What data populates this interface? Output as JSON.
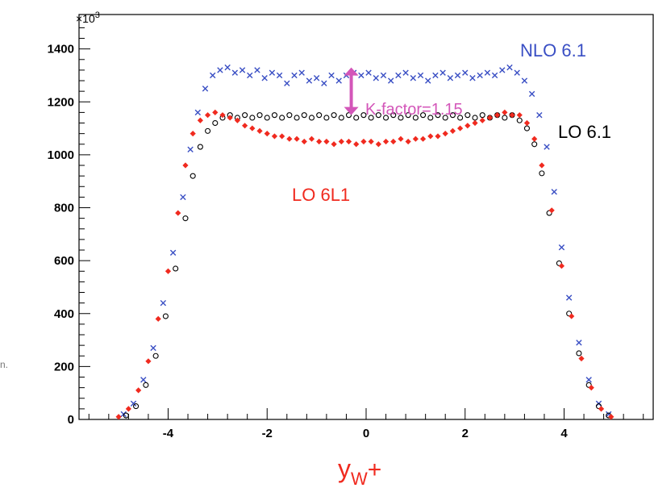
{
  "side_fragment": "n.",
  "chart_data": {
    "type": "scatter",
    "title": "",
    "xlabel": "y",
    "xlabel_sub": "W",
    "xlabel_sup": "+",
    "ylabel": "",
    "y_multiplier": "×10",
    "y_multiplier_exp": "3",
    "xlim": [
      -5.8,
      5.8
    ],
    "ylim": [
      0,
      1530
    ],
    "x_ticks": [
      "-4",
      "-2",
      "0",
      "2",
      "4"
    ],
    "y_ticks": [
      "0",
      "200",
      "400",
      "600",
      "800",
      "1000",
      "1200",
      "1400"
    ],
    "grid": false,
    "annotation": {
      "text": "K-factor=1.15",
      "x": -0.3,
      "y_from": 1150,
      "y_to": 1330,
      "color": "#d356b9"
    },
    "series": [
      {
        "name": "NLO 6.1",
        "marker": "cross",
        "color": "#3a4fc4",
        "points": [
          [
            -4.9,
            20
          ],
          [
            -4.7,
            60
          ],
          [
            -4.5,
            150
          ],
          [
            -4.3,
            270
          ],
          [
            -4.1,
            440
          ],
          [
            -3.9,
            630
          ],
          [
            -3.7,
            840
          ],
          [
            -3.55,
            1020
          ],
          [
            -3.4,
            1160
          ],
          [
            -3.25,
            1250
          ],
          [
            -3.1,
            1300
          ],
          [
            -2.95,
            1320
          ],
          [
            -2.8,
            1330
          ],
          [
            -2.65,
            1310
          ],
          [
            -2.5,
            1320
          ],
          [
            -2.35,
            1300
          ],
          [
            -2.2,
            1320
          ],
          [
            -2.05,
            1290
          ],
          [
            -1.9,
            1310
          ],
          [
            -1.75,
            1300
          ],
          [
            -1.6,
            1270
          ],
          [
            -1.45,
            1300
          ],
          [
            -1.3,
            1310
          ],
          [
            -1.15,
            1280
          ],
          [
            -1.0,
            1290
          ],
          [
            -0.85,
            1270
          ],
          [
            -0.7,
            1300
          ],
          [
            -0.55,
            1280
          ],
          [
            -0.4,
            1300
          ],
          [
            -0.25,
            1310
          ],
          [
            -0.1,
            1300
          ],
          [
            0.05,
            1310
          ],
          [
            0.2,
            1290
          ],
          [
            0.35,
            1300
          ],
          [
            0.5,
            1280
          ],
          [
            0.65,
            1300
          ],
          [
            0.8,
            1310
          ],
          [
            0.95,
            1290
          ],
          [
            1.1,
            1300
          ],
          [
            1.25,
            1280
          ],
          [
            1.4,
            1300
          ],
          [
            1.55,
            1310
          ],
          [
            1.7,
            1290
          ],
          [
            1.85,
            1300
          ],
          [
            2.0,
            1310
          ],
          [
            2.15,
            1290
          ],
          [
            2.3,
            1300
          ],
          [
            2.45,
            1310
          ],
          [
            2.6,
            1300
          ],
          [
            2.75,
            1320
          ],
          [
            2.9,
            1330
          ],
          [
            3.05,
            1310
          ],
          [
            3.2,
            1280
          ],
          [
            3.35,
            1230
          ],
          [
            3.5,
            1150
          ],
          [
            3.65,
            1030
          ],
          [
            3.8,
            860
          ],
          [
            3.95,
            650
          ],
          [
            4.1,
            460
          ],
          [
            4.3,
            290
          ],
          [
            4.5,
            150
          ],
          [
            4.7,
            60
          ],
          [
            4.9,
            20
          ]
        ]
      },
      {
        "name": "LO 6.1",
        "marker": "circle",
        "color": "#000000",
        "points": [
          [
            -4.85,
            15
          ],
          [
            -4.65,
            50
          ],
          [
            -4.45,
            130
          ],
          [
            -4.25,
            240
          ],
          [
            -4.05,
            390
          ],
          [
            -3.85,
            570
          ],
          [
            -3.65,
            760
          ],
          [
            -3.5,
            920
          ],
          [
            -3.35,
            1030
          ],
          [
            -3.2,
            1090
          ],
          [
            -3.05,
            1120
          ],
          [
            -2.9,
            1140
          ],
          [
            -2.75,
            1150
          ],
          [
            -2.6,
            1140
          ],
          [
            -2.45,
            1150
          ],
          [
            -2.3,
            1140
          ],
          [
            -2.15,
            1150
          ],
          [
            -2.0,
            1140
          ],
          [
            -1.85,
            1150
          ],
          [
            -1.7,
            1140
          ],
          [
            -1.55,
            1150
          ],
          [
            -1.4,
            1140
          ],
          [
            -1.25,
            1150
          ],
          [
            -1.1,
            1140
          ],
          [
            -0.95,
            1150
          ],
          [
            -0.8,
            1140
          ],
          [
            -0.65,
            1150
          ],
          [
            -0.5,
            1140
          ],
          [
            -0.35,
            1150
          ],
          [
            -0.2,
            1140
          ],
          [
            -0.05,
            1150
          ],
          [
            0.1,
            1140
          ],
          [
            0.25,
            1150
          ],
          [
            0.4,
            1140
          ],
          [
            0.55,
            1150
          ],
          [
            0.7,
            1140
          ],
          [
            0.85,
            1150
          ],
          [
            1.0,
            1140
          ],
          [
            1.15,
            1150
          ],
          [
            1.3,
            1140
          ],
          [
            1.45,
            1150
          ],
          [
            1.6,
            1140
          ],
          [
            1.75,
            1150
          ],
          [
            1.9,
            1140
          ],
          [
            2.05,
            1150
          ],
          [
            2.2,
            1140
          ],
          [
            2.35,
            1150
          ],
          [
            2.5,
            1140
          ],
          [
            2.65,
            1150
          ],
          [
            2.8,
            1140
          ],
          [
            2.95,
            1150
          ],
          [
            3.1,
            1130
          ],
          [
            3.25,
            1100
          ],
          [
            3.4,
            1040
          ],
          [
            3.55,
            930
          ],
          [
            3.7,
            780
          ],
          [
            3.9,
            590
          ],
          [
            4.1,
            400
          ],
          [
            4.3,
            250
          ],
          [
            4.5,
            130
          ],
          [
            4.7,
            50
          ],
          [
            4.9,
            15
          ]
        ]
      },
      {
        "name": "LO 6L1",
        "marker": "diamond",
        "color": "#f02a1f",
        "points": [
          [
            -5.0,
            10
          ],
          [
            -4.8,
            40
          ],
          [
            -4.6,
            110
          ],
          [
            -4.4,
            220
          ],
          [
            -4.2,
            380
          ],
          [
            -4.0,
            560
          ],
          [
            -3.8,
            780
          ],
          [
            -3.65,
            960
          ],
          [
            -3.5,
            1080
          ],
          [
            -3.35,
            1130
          ],
          [
            -3.2,
            1150
          ],
          [
            -3.05,
            1160
          ],
          [
            -2.9,
            1150
          ],
          [
            -2.75,
            1140
          ],
          [
            -2.6,
            1130
          ],
          [
            -2.45,
            1110
          ],
          [
            -2.3,
            1100
          ],
          [
            -2.15,
            1090
          ],
          [
            -2.0,
            1080
          ],
          [
            -1.85,
            1070
          ],
          [
            -1.7,
            1070
          ],
          [
            -1.55,
            1060
          ],
          [
            -1.4,
            1060
          ],
          [
            -1.25,
            1050
          ],
          [
            -1.1,
            1060
          ],
          [
            -0.95,
            1050
          ],
          [
            -0.8,
            1050
          ],
          [
            -0.65,
            1040
          ],
          [
            -0.5,
            1050
          ],
          [
            -0.35,
            1050
          ],
          [
            -0.2,
            1040
          ],
          [
            -0.05,
            1050
          ],
          [
            0.1,
            1050
          ],
          [
            0.25,
            1040
          ],
          [
            0.4,
            1050
          ],
          [
            0.55,
            1050
          ],
          [
            0.7,
            1060
          ],
          [
            0.85,
            1050
          ],
          [
            1.0,
            1060
          ],
          [
            1.15,
            1060
          ],
          [
            1.3,
            1070
          ],
          [
            1.45,
            1070
          ],
          [
            1.6,
            1080
          ],
          [
            1.75,
            1090
          ],
          [
            1.9,
            1100
          ],
          [
            2.05,
            1110
          ],
          [
            2.2,
            1120
          ],
          [
            2.35,
            1130
          ],
          [
            2.5,
            1140
          ],
          [
            2.65,
            1150
          ],
          [
            2.8,
            1160
          ],
          [
            2.95,
            1150
          ],
          [
            3.1,
            1150
          ],
          [
            3.25,
            1120
          ],
          [
            3.4,
            1060
          ],
          [
            3.55,
            960
          ],
          [
            3.75,
            790
          ],
          [
            3.95,
            580
          ],
          [
            4.15,
            390
          ],
          [
            4.35,
            230
          ],
          [
            4.55,
            120
          ],
          [
            4.75,
            40
          ],
          [
            4.95,
            10
          ]
        ]
      }
    ]
  }
}
